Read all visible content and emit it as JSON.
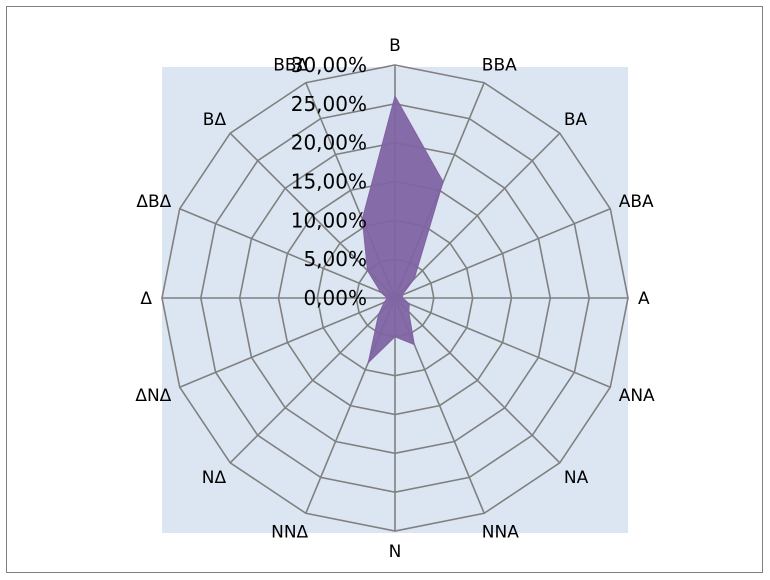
{
  "chart_data": {
    "type": "radar",
    "categories": [
      "B",
      "BBA",
      "BA",
      "ABA",
      "A",
      "ANA",
      "NA",
      "NNA",
      "N",
      "NNΔ",
      "NΔ",
      "ΔNΔ",
      "Δ",
      "ΔΒΔ",
      "ΒΔ",
      "ΒΒΔ"
    ],
    "series": [
      {
        "values": [
          26.0,
          16.2,
          3.5,
          1.0,
          1.0,
          2.0,
          2.5,
          6.5,
          5.0,
          9.0,
          3.0,
          1.5,
          1.0,
          2.0,
          5.0,
          11.0
        ]
      }
    ],
    "ticks": [
      "0,00%",
      "5,00%",
      "10,00%",
      "15,00%",
      "20,00%",
      "25,00%",
      "30,00%"
    ],
    "rmax": 30,
    "grid": true,
    "colors": {
      "fill": "#8064A2",
      "grid": "#808080",
      "plot_bg": "#DCE6F2",
      "border": "#808080"
    }
  }
}
